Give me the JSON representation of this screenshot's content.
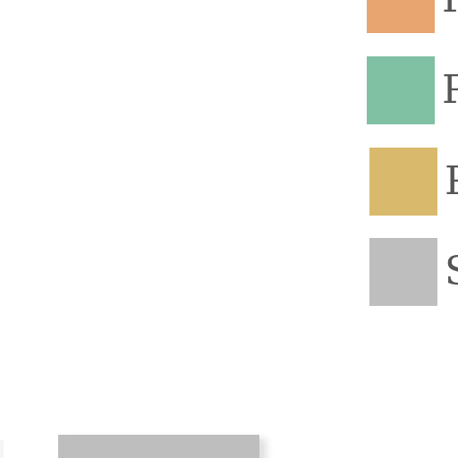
{
  "chart_data": {
    "type": "bar",
    "title": "",
    "xlabel": "",
    "ylabel": "",
    "legend": {
      "placement": "top-right",
      "entries": [
        {
          "label": "P",
          "color": "#e8a570"
        },
        {
          "label": "P",
          "color": "#80c1a3"
        },
        {
          "label": "P",
          "color": "#d9ba6c"
        },
        {
          "label": "S",
          "color": "#bfbebf"
        }
      ]
    },
    "series": [
      {
        "color": "#bfbebf",
        "values": []
      }
    ]
  }
}
